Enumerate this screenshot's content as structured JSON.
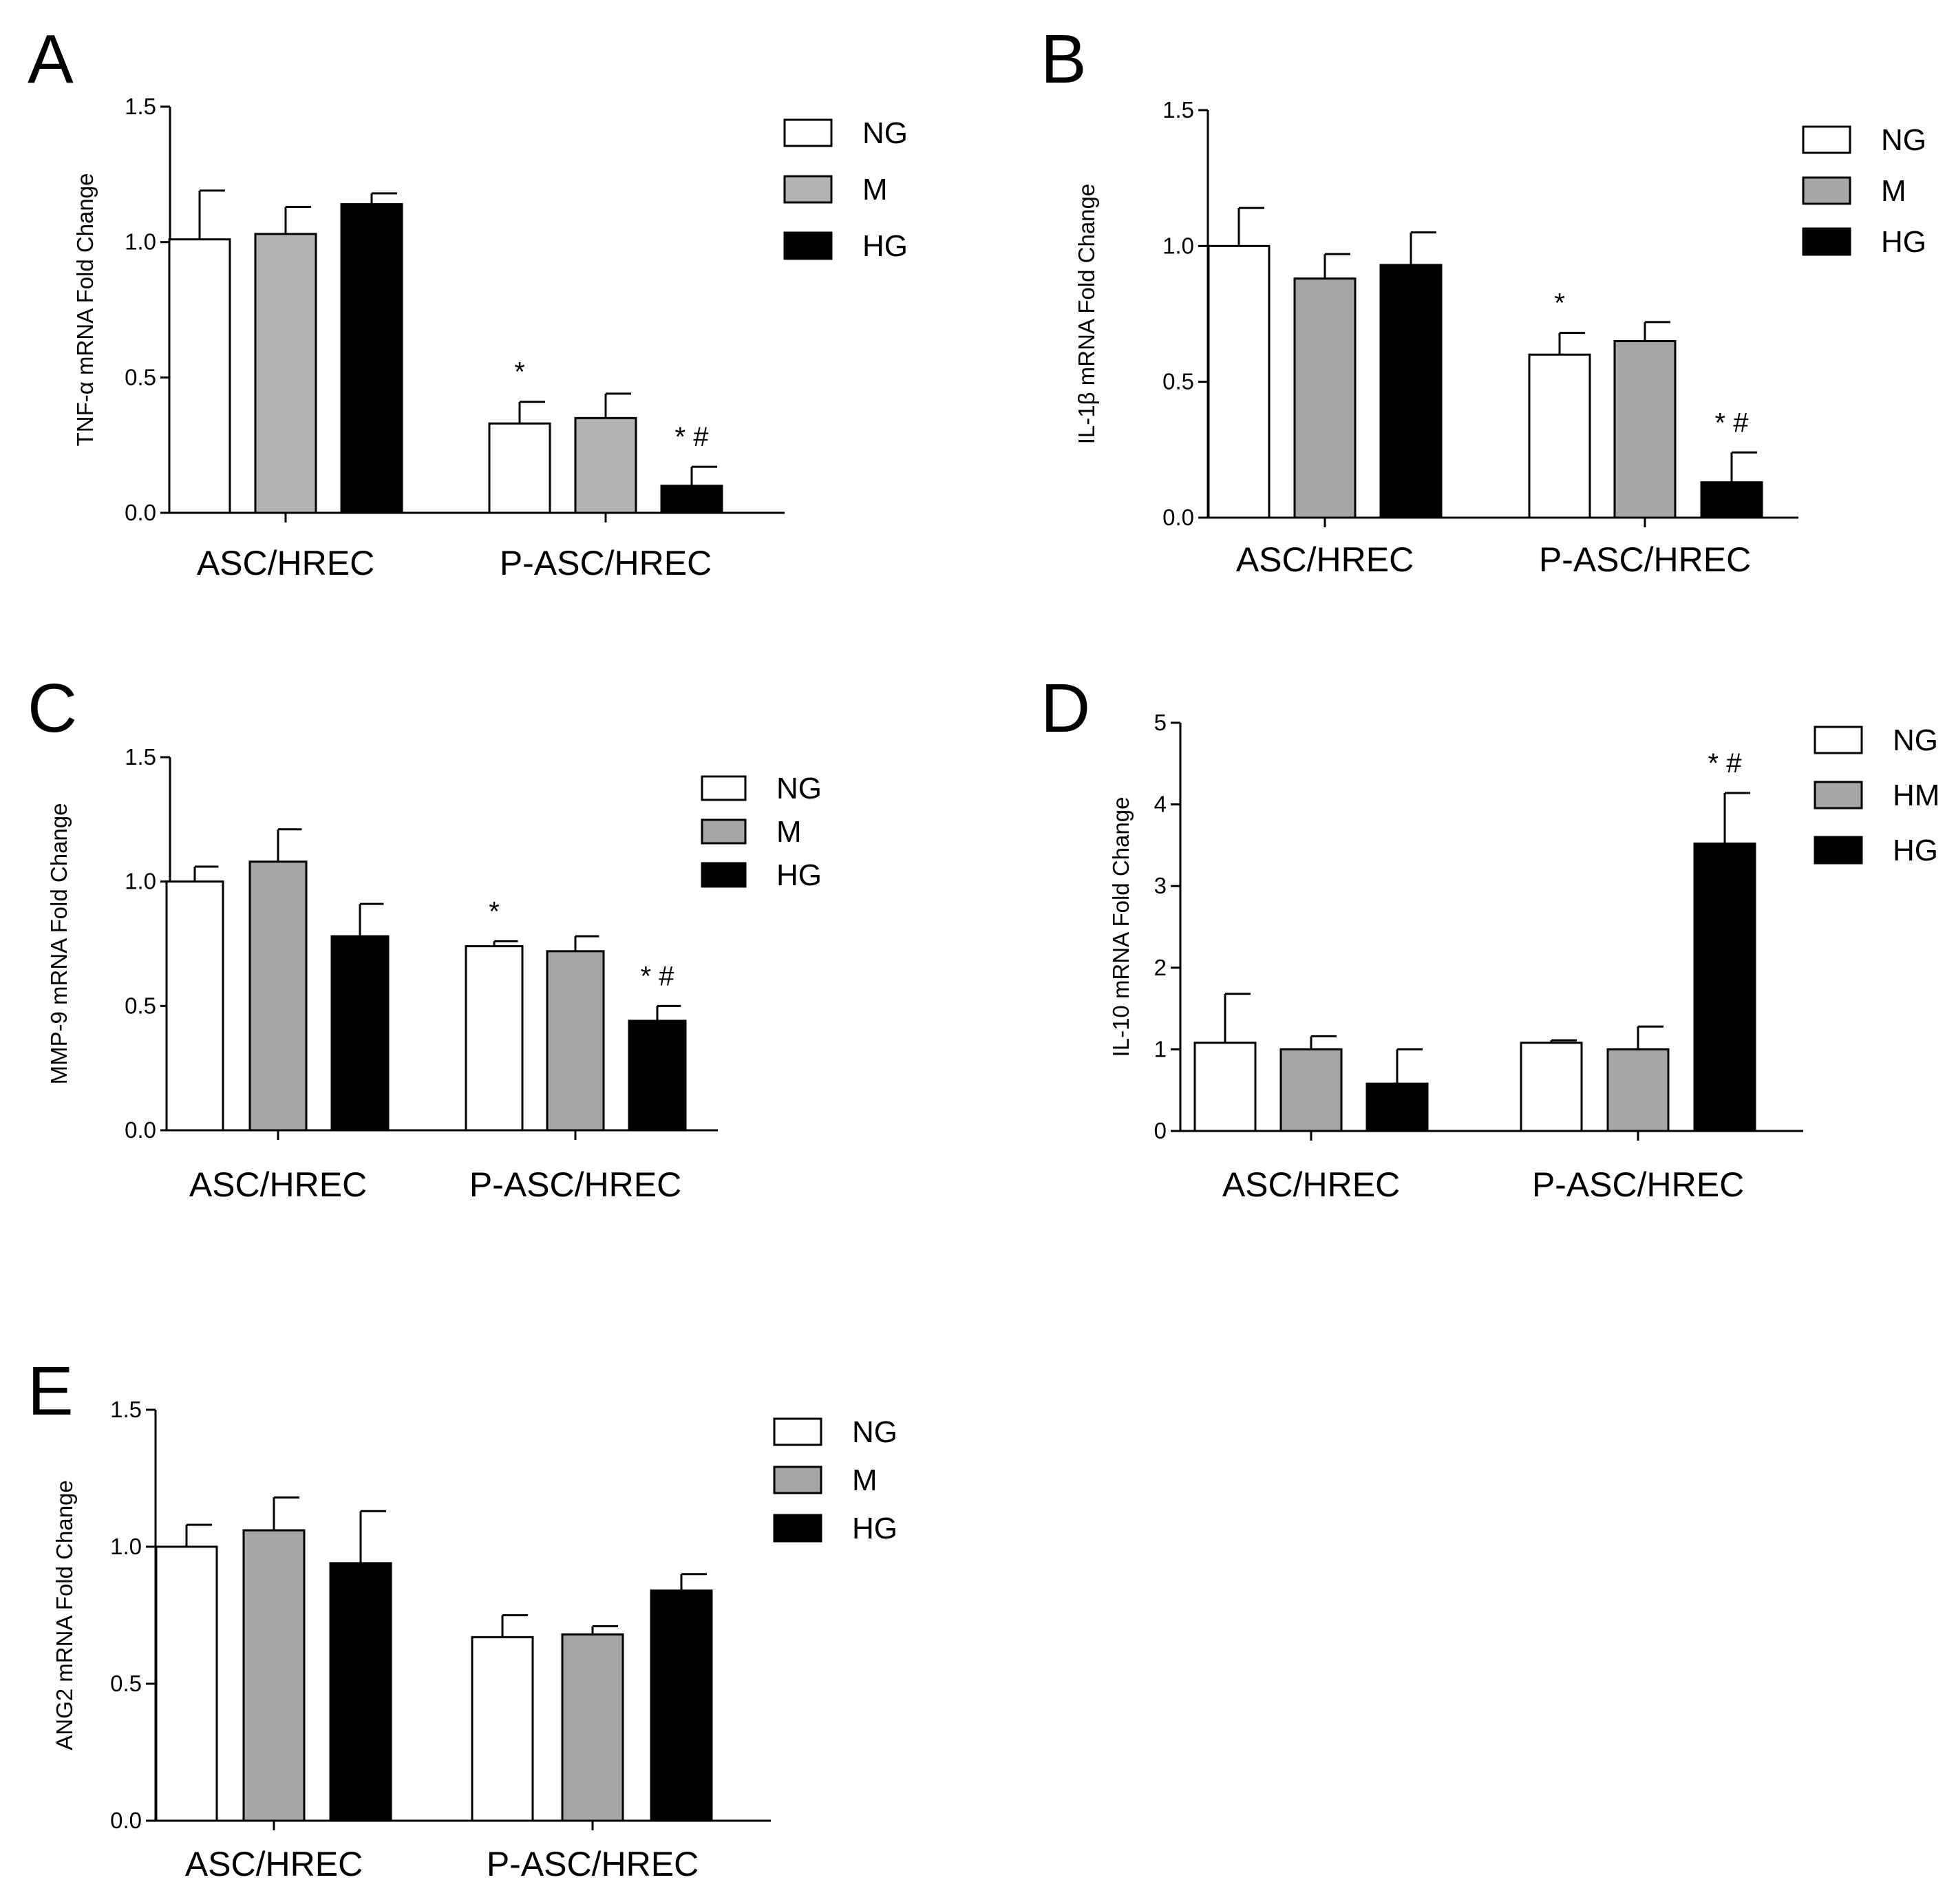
{
  "chart_data": [
    {
      "panel": "A",
      "type": "bar",
      "ylabel": "TNF-α mRNA Fold Change",
      "ylim": [
        0,
        1.5
      ],
      "yticks": [
        "0.0",
        "0.5",
        "1.0",
        "1.5"
      ],
      "categories": [
        "ASC/HREC",
        "P-ASC/HREC"
      ],
      "series": [
        {
          "name": "NG",
          "color": "#ffffff",
          "values": [
            1.01,
            0.33
          ],
          "errors": [
            0.18,
            0.08
          ]
        },
        {
          "name": "M",
          "color": "#b3b3b3",
          "values": [
            1.03,
            0.35
          ],
          "errors": [
            0.1,
            0.09
          ]
        },
        {
          "name": "HG",
          "color": "#000000",
          "values": [
            1.14,
            0.1
          ],
          "errors": [
            0.04,
            0.07
          ]
        }
      ],
      "annotations": [
        {
          "category": 1,
          "series": 0,
          "text": "*"
        },
        {
          "category": 1,
          "series": 2,
          "text": "* #"
        }
      ]
    },
    {
      "panel": "B",
      "type": "bar",
      "ylabel": "IL-1β mRNA Fold Change",
      "ylim": [
        0,
        1.5
      ],
      "yticks": [
        "0.0",
        "0.5",
        "1.0",
        "1.5"
      ],
      "categories": [
        "ASC/HREC",
        "P-ASC/HREC"
      ],
      "series": [
        {
          "name": "NG",
          "color": "#ffffff",
          "values": [
            1.0,
            0.6
          ],
          "errors": [
            0.14,
            0.08
          ]
        },
        {
          "name": "M",
          "color": "#a6a6a6",
          "values": [
            0.88,
            0.65
          ],
          "errors": [
            0.09,
            0.07
          ]
        },
        {
          "name": "HG",
          "color": "#000000",
          "values": [
            0.93,
            0.13
          ],
          "errors": [
            0.12,
            0.11
          ]
        }
      ],
      "annotations": [
        {
          "category": 1,
          "series": 0,
          "text": "*"
        },
        {
          "category": 1,
          "series": 2,
          "text": "* #"
        }
      ]
    },
    {
      "panel": "C",
      "type": "bar",
      "ylabel": "MMP-9 mRNA Fold Change",
      "ylim": [
        0,
        1.5
      ],
      "yticks": [
        "0.0",
        "0.5",
        "1.0",
        "1.5"
      ],
      "categories": [
        "ASC/HREC",
        "P-ASC/HREC"
      ],
      "series": [
        {
          "name": "NG",
          "color": "#ffffff",
          "values": [
            1.0,
            0.74
          ],
          "errors": [
            0.06,
            0.02
          ]
        },
        {
          "name": "M",
          "color": "#a6a6a6",
          "values": [
            1.08,
            0.72
          ],
          "errors": [
            0.13,
            0.06
          ]
        },
        {
          "name": "HG",
          "color": "#000000",
          "values": [
            0.78,
            0.44
          ],
          "errors": [
            0.13,
            0.06
          ]
        }
      ],
      "annotations": [
        {
          "category": 1,
          "series": 0,
          "text": "*"
        },
        {
          "category": 1,
          "series": 2,
          "text": "* #"
        }
      ]
    },
    {
      "panel": "D",
      "type": "bar",
      "ylabel": "IL-10 mRNA Fold Change",
      "ylim": [
        0,
        5
      ],
      "yticks": [
        "0",
        "1",
        "2",
        "3",
        "4",
        "5"
      ],
      "categories": [
        "ASC/HREC",
        "P-ASC/HREC"
      ],
      "series": [
        {
          "name": "NG",
          "color": "#ffffff",
          "values": [
            1.08,
            1.08
          ],
          "errors": [
            0.6,
            0.03
          ]
        },
        {
          "name": "HM",
          "color": "#a6a6a6",
          "values": [
            1.0,
            1.0
          ],
          "errors": [
            0.16,
            0.28
          ]
        },
        {
          "name": "HG",
          "color": "#000000",
          "values": [
            0.58,
            3.52
          ],
          "errors": [
            0.42,
            0.62
          ]
        }
      ],
      "annotations": [
        {
          "category": 1,
          "series": 2,
          "text": "* #"
        }
      ]
    },
    {
      "panel": "E",
      "type": "bar",
      "ylabel": "ANG2 mRNA Fold Change",
      "ylim": [
        0,
        1.5
      ],
      "yticks": [
        "0.0",
        "0.5",
        "1.0",
        "1.5"
      ],
      "categories": [
        "ASC/HREC",
        "P-ASC/HREC"
      ],
      "series": [
        {
          "name": "NG",
          "color": "#ffffff",
          "values": [
            1.0,
            0.67
          ],
          "errors": [
            0.08,
            0.08
          ]
        },
        {
          "name": "M",
          "color": "#a6a6a6",
          "values": [
            1.06,
            0.68
          ],
          "errors": [
            0.12,
            0.03
          ]
        },
        {
          "name": "HG",
          "color": "#000000",
          "values": [
            0.94,
            0.84
          ],
          "errors": [
            0.19,
            0.06
          ]
        }
      ],
      "annotations": []
    }
  ]
}
